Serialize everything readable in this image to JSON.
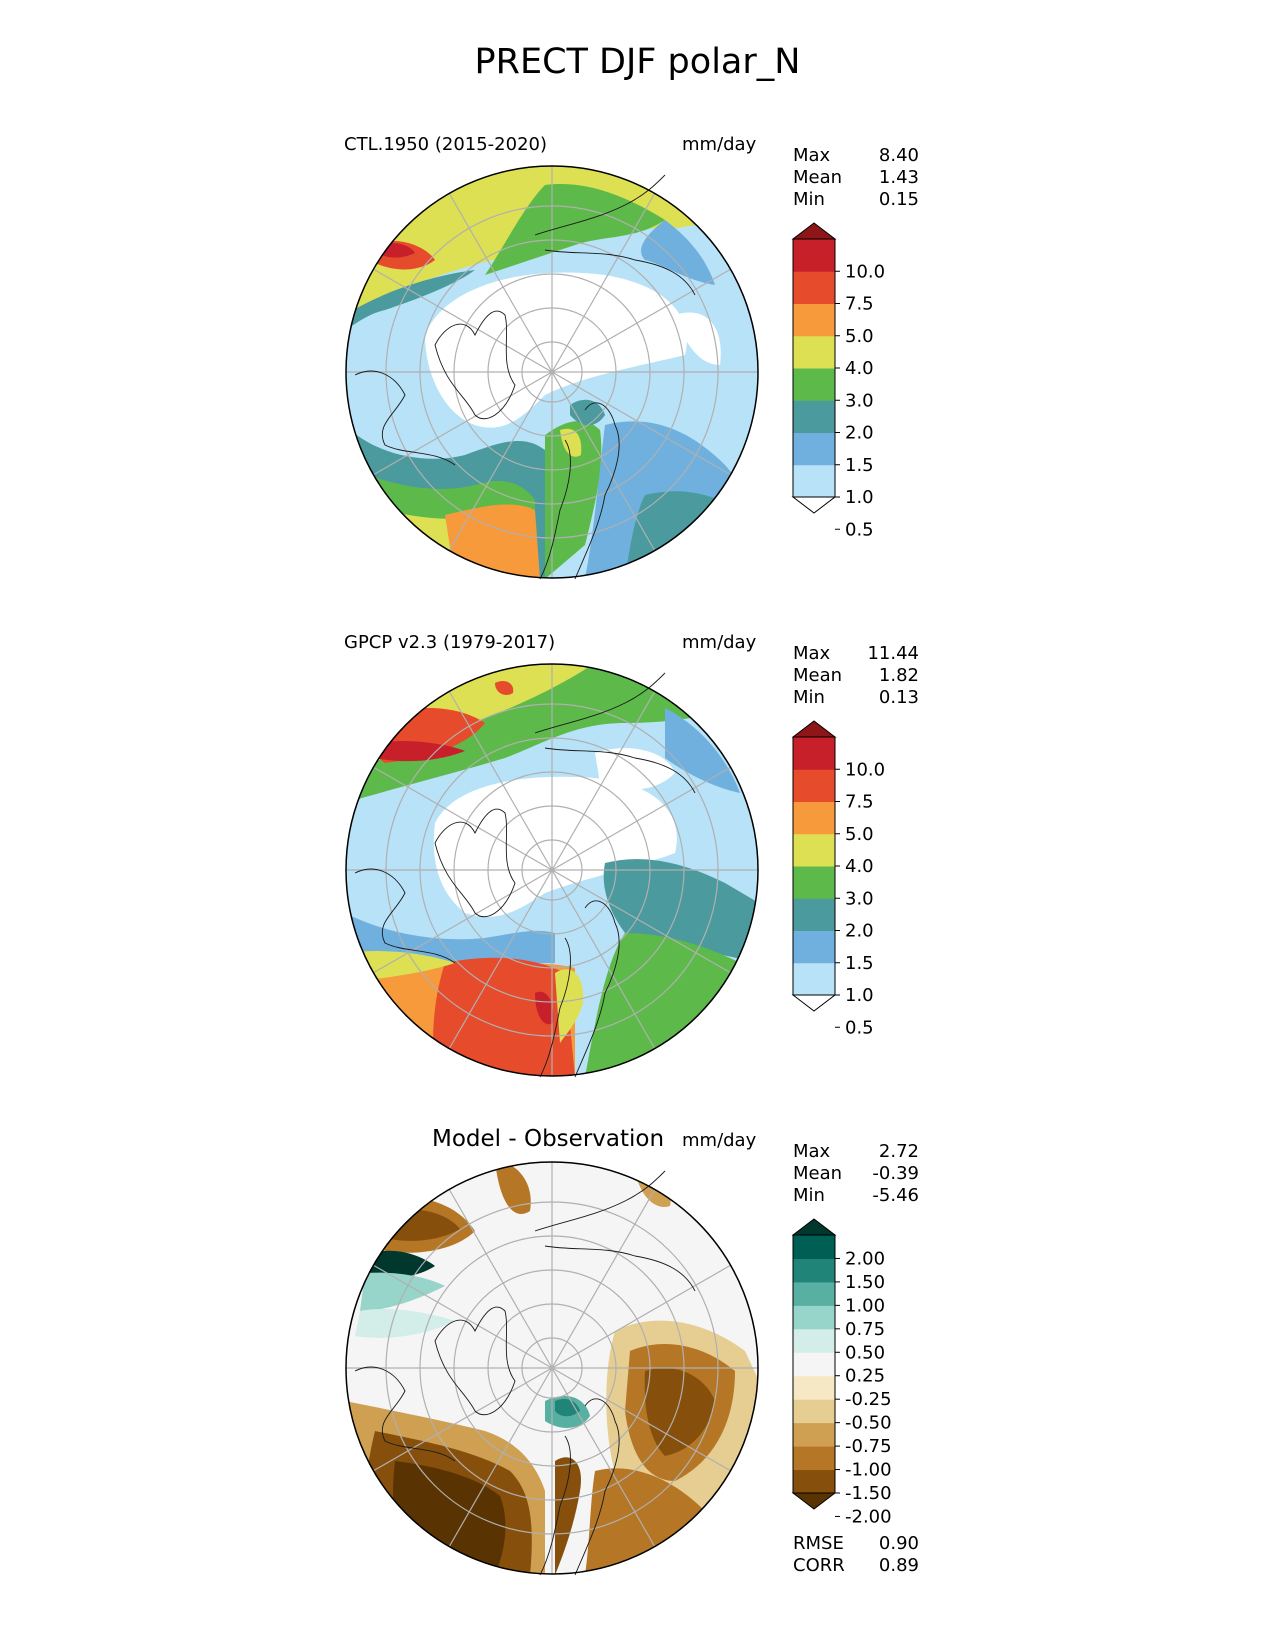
{
  "title": "PRECT DJF polar_N",
  "colors": {
    "precip": [
      "#ffffff",
      "#b8e2f7",
      "#6fb0df",
      "#4a9a9e",
      "#5dba4a",
      "#dde052",
      "#f79a3c",
      "#e64b2c",
      "#c8202a",
      "#8e1619"
    ],
    "diff": [
      "#5a3303",
      "#86500c",
      "#b57625",
      "#cfa052",
      "#e6cd92",
      "#f6e8c4",
      "#f5f5f5",
      "#d3ede9",
      "#97d5ca",
      "#57b0a1",
      "#218479",
      "#005f54",
      "#00382d"
    ]
  },
  "panels": [
    {
      "id": "test",
      "title": "CTL.1950 (2015-2020)",
      "units": "mm/day",
      "stats": [
        {
          "label": "Max",
          "value": "8.40"
        },
        {
          "label": "Mean",
          "value": "1.43"
        },
        {
          "label": "Min",
          "value": "0.15"
        }
      ],
      "colorbar": {
        "ticks": [
          "10.0",
          "7.5",
          "5.0",
          "4.0",
          "3.0",
          "2.0",
          "1.5",
          "1.0",
          "0.5"
        ]
      }
    },
    {
      "id": "ref",
      "title": "GPCP v2.3 (1979-2017)",
      "units": "mm/day",
      "stats": [
        {
          "label": "Max",
          "value": "11.44"
        },
        {
          "label": "Mean",
          "value": "1.82"
        },
        {
          "label": "Min",
          "value": "0.13"
        }
      ],
      "colorbar": {
        "ticks": [
          "10.0",
          "7.5",
          "5.0",
          "4.0",
          "3.0",
          "2.0",
          "1.5",
          "1.0",
          "0.5"
        ]
      }
    },
    {
      "id": "diff",
      "title": "Model - Observation",
      "units": "mm/day",
      "stats": [
        {
          "label": "Max",
          "value": "2.72"
        },
        {
          "label": "Mean",
          "value": "-0.39"
        },
        {
          "label": "Min",
          "value": "-5.46"
        }
      ],
      "colorbar": {
        "ticks": [
          "2.00",
          "1.50",
          "1.00",
          "0.75",
          "0.50",
          "0.25",
          "-0.25",
          "-0.50",
          "-0.75",
          "-1.00",
          "-1.50",
          "-2.00"
        ]
      },
      "metrics": [
        {
          "label": "RMSE",
          "value": "0.90"
        },
        {
          "label": "CORR",
          "value": "0.89"
        }
      ]
    }
  ]
}
